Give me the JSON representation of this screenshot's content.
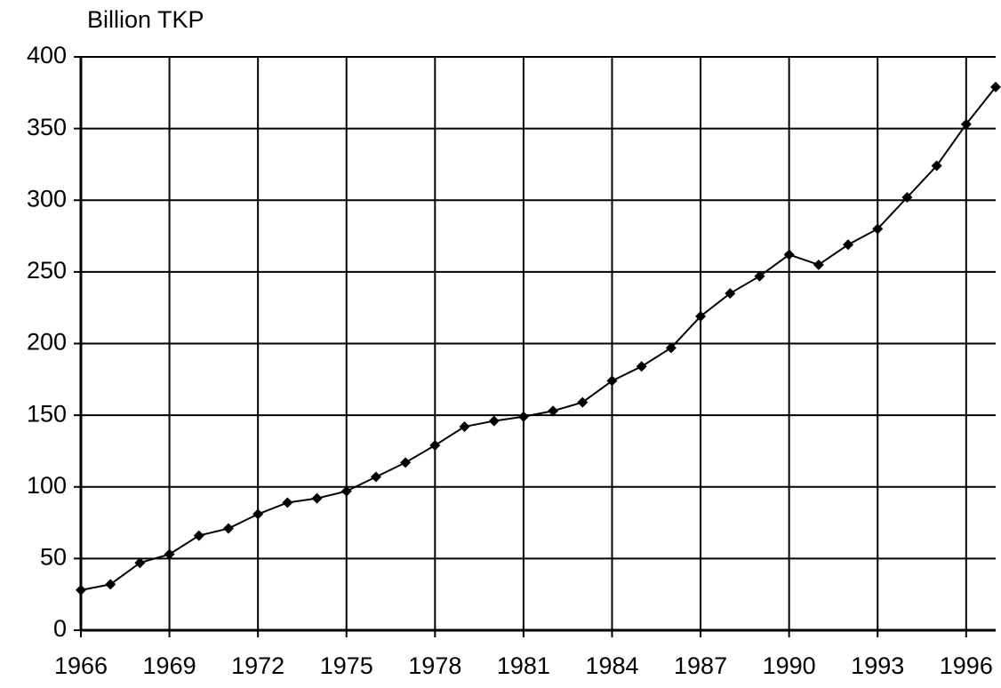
{
  "chart_data": {
    "type": "line",
    "y_label": "Billion TKP",
    "x": [
      1966,
      1967,
      1968,
      1969,
      1970,
      1971,
      1972,
      1973,
      1974,
      1975,
      1976,
      1977,
      1978,
      1979,
      1980,
      1981,
      1982,
      1983,
      1984,
      1985,
      1986,
      1987,
      1988,
      1989,
      1990,
      1991,
      1992,
      1993,
      1994,
      1995,
      1996,
      1997
    ],
    "series": [
      {
        "color": "#000000",
        "values": [
          28,
          32,
          47,
          53,
          66,
          71,
          81,
          89,
          92,
          97,
          107,
          117,
          129,
          142,
          146,
          149,
          153,
          159,
          174,
          184,
          197,
          219,
          235,
          247,
          262,
          255,
          269,
          280,
          302,
          324,
          353,
          379
        ]
      }
    ],
    "xlim": [
      1966,
      1997
    ],
    "xticks": [
      1966,
      1969,
      1972,
      1975,
      1978,
      1981,
      1984,
      1987,
      1990,
      1993,
      1996
    ],
    "ylim": [
      0,
      400
    ],
    "yticks": [
      0,
      50,
      100,
      150,
      200,
      250,
      300,
      350,
      400
    ],
    "grid": true,
    "marker": "diamond"
  }
}
